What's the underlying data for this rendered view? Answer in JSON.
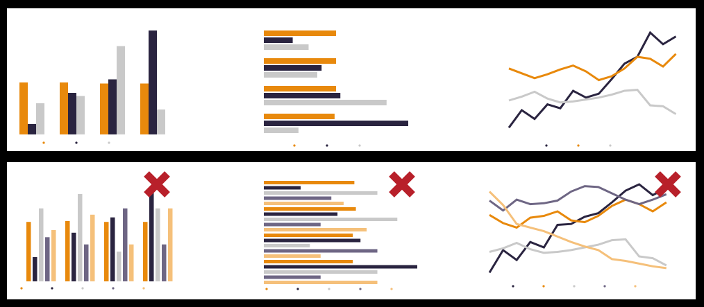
{
  "colors": {
    "orange": "#E8890C",
    "navy": "#2A2440",
    "gray": "#C9C9C9",
    "purple": "#6E6684",
    "peach": "#F5C07A",
    "cross": "#B8202A",
    "frame": "#000000"
  },
  "icons": {
    "reject": "cross-icon"
  },
  "chart_data": [
    {
      "id": "good-bar",
      "type": "bar",
      "categories": [
        "",
        "",
        "",
        ""
      ],
      "series": [
        {
          "color": "orange",
          "values": [
            50,
            50,
            49,
            49
          ]
        },
        {
          "color": "navy",
          "values": [
            10,
            40,
            53,
            100
          ]
        },
        {
          "color": "gray",
          "values": [
            30,
            37,
            85,
            24
          ]
        }
      ],
      "ylim": [
        0,
        100
      ],
      "legend": {
        "placement": "bottom",
        "labels": [
          "",
          "",
          ""
        ]
      }
    },
    {
      "id": "good-hbar",
      "type": "bar",
      "orientation": "horizontal",
      "categories": [
        "",
        "",
        "",
        ""
      ],
      "series": [
        {
          "color": "orange",
          "values": [
            50,
            50,
            50,
            49
          ]
        },
        {
          "color": "navy",
          "values": [
            20,
            40,
            53,
            100
          ]
        },
        {
          "color": "gray",
          "values": [
            31,
            37,
            85,
            24
          ]
        }
      ],
      "xlim": [
        0,
        100
      ],
      "legend": {
        "placement": "bottom",
        "labels": [
          "",
          "",
          ""
        ]
      }
    },
    {
      "id": "good-line",
      "type": "line",
      "x": [
        0,
        1,
        2,
        3,
        4,
        5,
        6,
        7,
        8,
        9,
        10,
        11,
        12,
        13
      ],
      "series": [
        {
          "color": "navy",
          "values": [
            2,
            20,
            11,
            26,
            22,
            40,
            33,
            37,
            52,
            68,
            75,
            100,
            88,
            96
          ]
        },
        {
          "color": "orange",
          "values": [
            63,
            58,
            53,
            57,
            62,
            66,
            60,
            51,
            55,
            63,
            75,
            73,
            65,
            78
          ]
        },
        {
          "color": "gray",
          "values": [
            30,
            34,
            39,
            32,
            28,
            29,
            31,
            33,
            36,
            40,
            41,
            25,
            24,
            16
          ]
        }
      ],
      "ylim": [
        0,
        100
      ],
      "legend": {
        "placement": "bottom",
        "labels": [
          "",
          "",
          ""
        ]
      }
    },
    {
      "id": "bad-bar",
      "type": "bar",
      "categories": [
        "",
        "",
        "",
        ""
      ],
      "series": [
        {
          "color": "orange",
          "values": [
            66,
            67,
            66,
            66
          ]
        },
        {
          "color": "navy",
          "values": [
            27,
            54,
            71,
            100
          ]
        },
        {
          "color": "gray",
          "values": [
            81,
            97,
            33,
            81
          ]
        },
        {
          "color": "purple",
          "values": [
            49,
            41,
            81,
            41
          ]
        },
        {
          "color": "peach",
          "values": [
            57,
            74,
            41,
            81
          ]
        }
      ],
      "ylim": [
        0,
        100
      ],
      "legend": {
        "placement": "bottom",
        "labels": [
          "",
          "",
          "",
          "",
          ""
        ]
      }
    },
    {
      "id": "bad-hbar",
      "type": "bar",
      "orientation": "horizontal",
      "categories": [
        "",
        "",
        "",
        ""
      ],
      "series": [
        {
          "color": "orange",
          "values": [
            59,
            60,
            58,
            58
          ]
        },
        {
          "color": "navy",
          "values": [
            24,
            48,
            63,
            100
          ]
        },
        {
          "color": "gray",
          "values": [
            74,
            87,
            30,
            74
          ]
        },
        {
          "color": "purple",
          "values": [
            44,
            37,
            74,
            37
          ]
        },
        {
          "color": "peach",
          "values": [
            52,
            67,
            37,
            74
          ]
        }
      ],
      "xlim": [
        0,
        100
      ],
      "legend": {
        "placement": "bottom",
        "labels": [
          "",
          "",
          "",
          "",
          ""
        ]
      }
    },
    {
      "id": "bad-line",
      "type": "line",
      "x": [
        0,
        1,
        2,
        3,
        4,
        5,
        6,
        7,
        8,
        9,
        10,
        11,
        12,
        13
      ],
      "series": [
        {
          "color": "navy",
          "values": [
            2,
            27,
            16,
            36,
            30,
            55,
            56,
            64,
            68,
            80,
            93,
            100,
            88,
            96
          ]
        },
        {
          "color": "orange",
          "values": [
            66,
            57,
            52,
            63,
            65,
            70,
            60,
            58,
            65,
            76,
            83,
            78,
            70,
            80
          ]
        },
        {
          "color": "gray",
          "values": [
            25,
            29,
            35,
            28,
            24,
            25,
            27,
            30,
            33,
            38,
            39,
            20,
            18,
            10
          ]
        },
        {
          "color": "purple",
          "values": [
            82,
            71,
            83,
            78,
            79,
            82,
            92,
            98,
            97,
            90,
            83,
            78,
            83,
            89
          ]
        },
        {
          "color": "peach",
          "values": [
            92,
            77,
            56,
            52,
            48,
            42,
            36,
            31,
            27,
            17,
            15,
            12,
            9,
            7
          ]
        }
      ],
      "ylim": [
        0,
        100
      ],
      "legend": {
        "placement": "bottom",
        "labels": [
          "",
          "",
          "",
          "",
          ""
        ]
      }
    }
  ]
}
